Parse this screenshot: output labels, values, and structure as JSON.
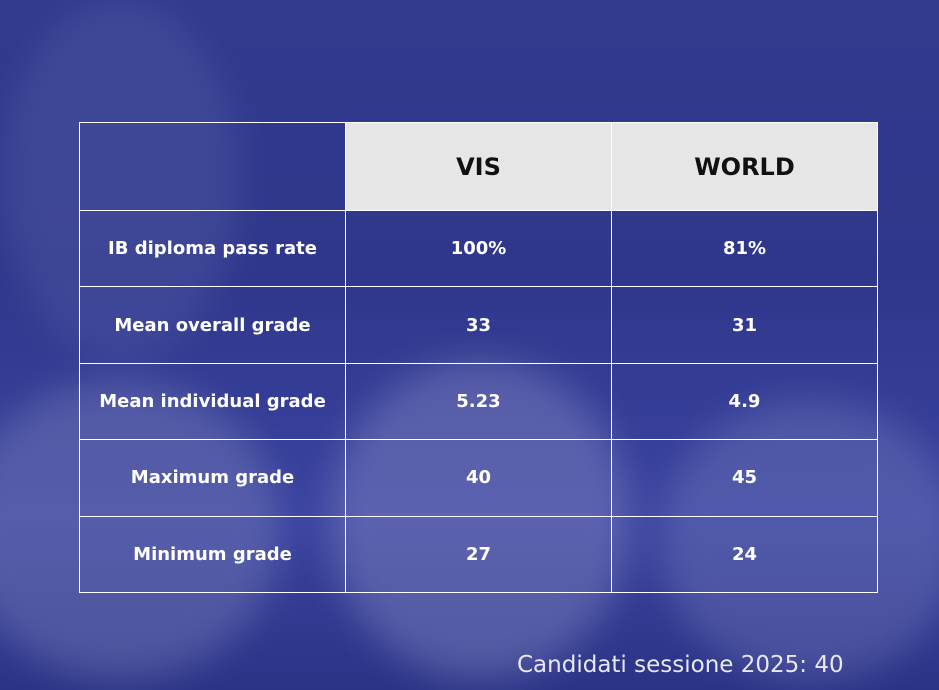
{
  "table": {
    "columns": [
      "VIS",
      "WORLD"
    ],
    "rows": [
      [
        "IB diploma pass rate",
        "100%",
        "81%"
      ],
      [
        "Mean overall grade",
        "33",
        "31"
      ],
      [
        "Mean individual grade",
        "5.23",
        "4.9"
      ],
      [
        "Maximum grade",
        "40",
        "45"
      ],
      [
        "Minimum grade",
        "27",
        "24"
      ]
    ]
  },
  "footer": {
    "text": "Candidati sessione 2025: 40"
  }
}
